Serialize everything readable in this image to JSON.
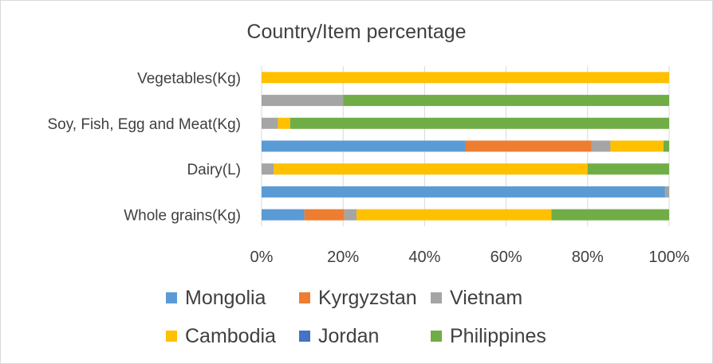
{
  "chart_data": {
    "type": "bar",
    "orientation": "horizontal",
    "stacking": "percent",
    "title": "Country/Item percentage",
    "categories": [
      "Whole grains(Kg)",
      "",
      "Dairy(L)",
      "",
      "Soy, Fish, Egg and Meat(Kg)",
      "",
      "Vegetables(Kg)"
    ],
    "series": [
      {
        "name": "Mongolia",
        "color": "#5b9bd5",
        "values": [
          10.5,
          99,
          0,
          50,
          0,
          0,
          0
        ]
      },
      {
        "name": "Kyrgyzstan",
        "color": "#ed7d31",
        "values": [
          9.8,
          0,
          0,
          31,
          0,
          0,
          0
        ]
      },
      {
        "name": "Vietnam",
        "color": "#a5a5a5",
        "values": [
          3,
          1,
          3,
          4.6,
          4,
          20,
          0
        ]
      },
      {
        "name": "Cambodia",
        "color": "#ffc000",
        "values": [
          47.8,
          0,
          77,
          13,
          3,
          0,
          100
        ]
      },
      {
        "name": "Jordan",
        "color": "#4472c4",
        "values": [
          0,
          0,
          0,
          0,
          0,
          0,
          0
        ]
      },
      {
        "name": "Philippines",
        "color": "#70ad47",
        "values": [
          28.9,
          0,
          20,
          1.4,
          93,
          80,
          0
        ]
      }
    ],
    "xlim": [
      0,
      100
    ],
    "xticks": [
      "0%",
      "20%",
      "40%",
      "60%",
      "80%",
      "100%"
    ],
    "grid": "vertical",
    "legend": "bottom",
    "xlabel": "",
    "ylabel": ""
  }
}
